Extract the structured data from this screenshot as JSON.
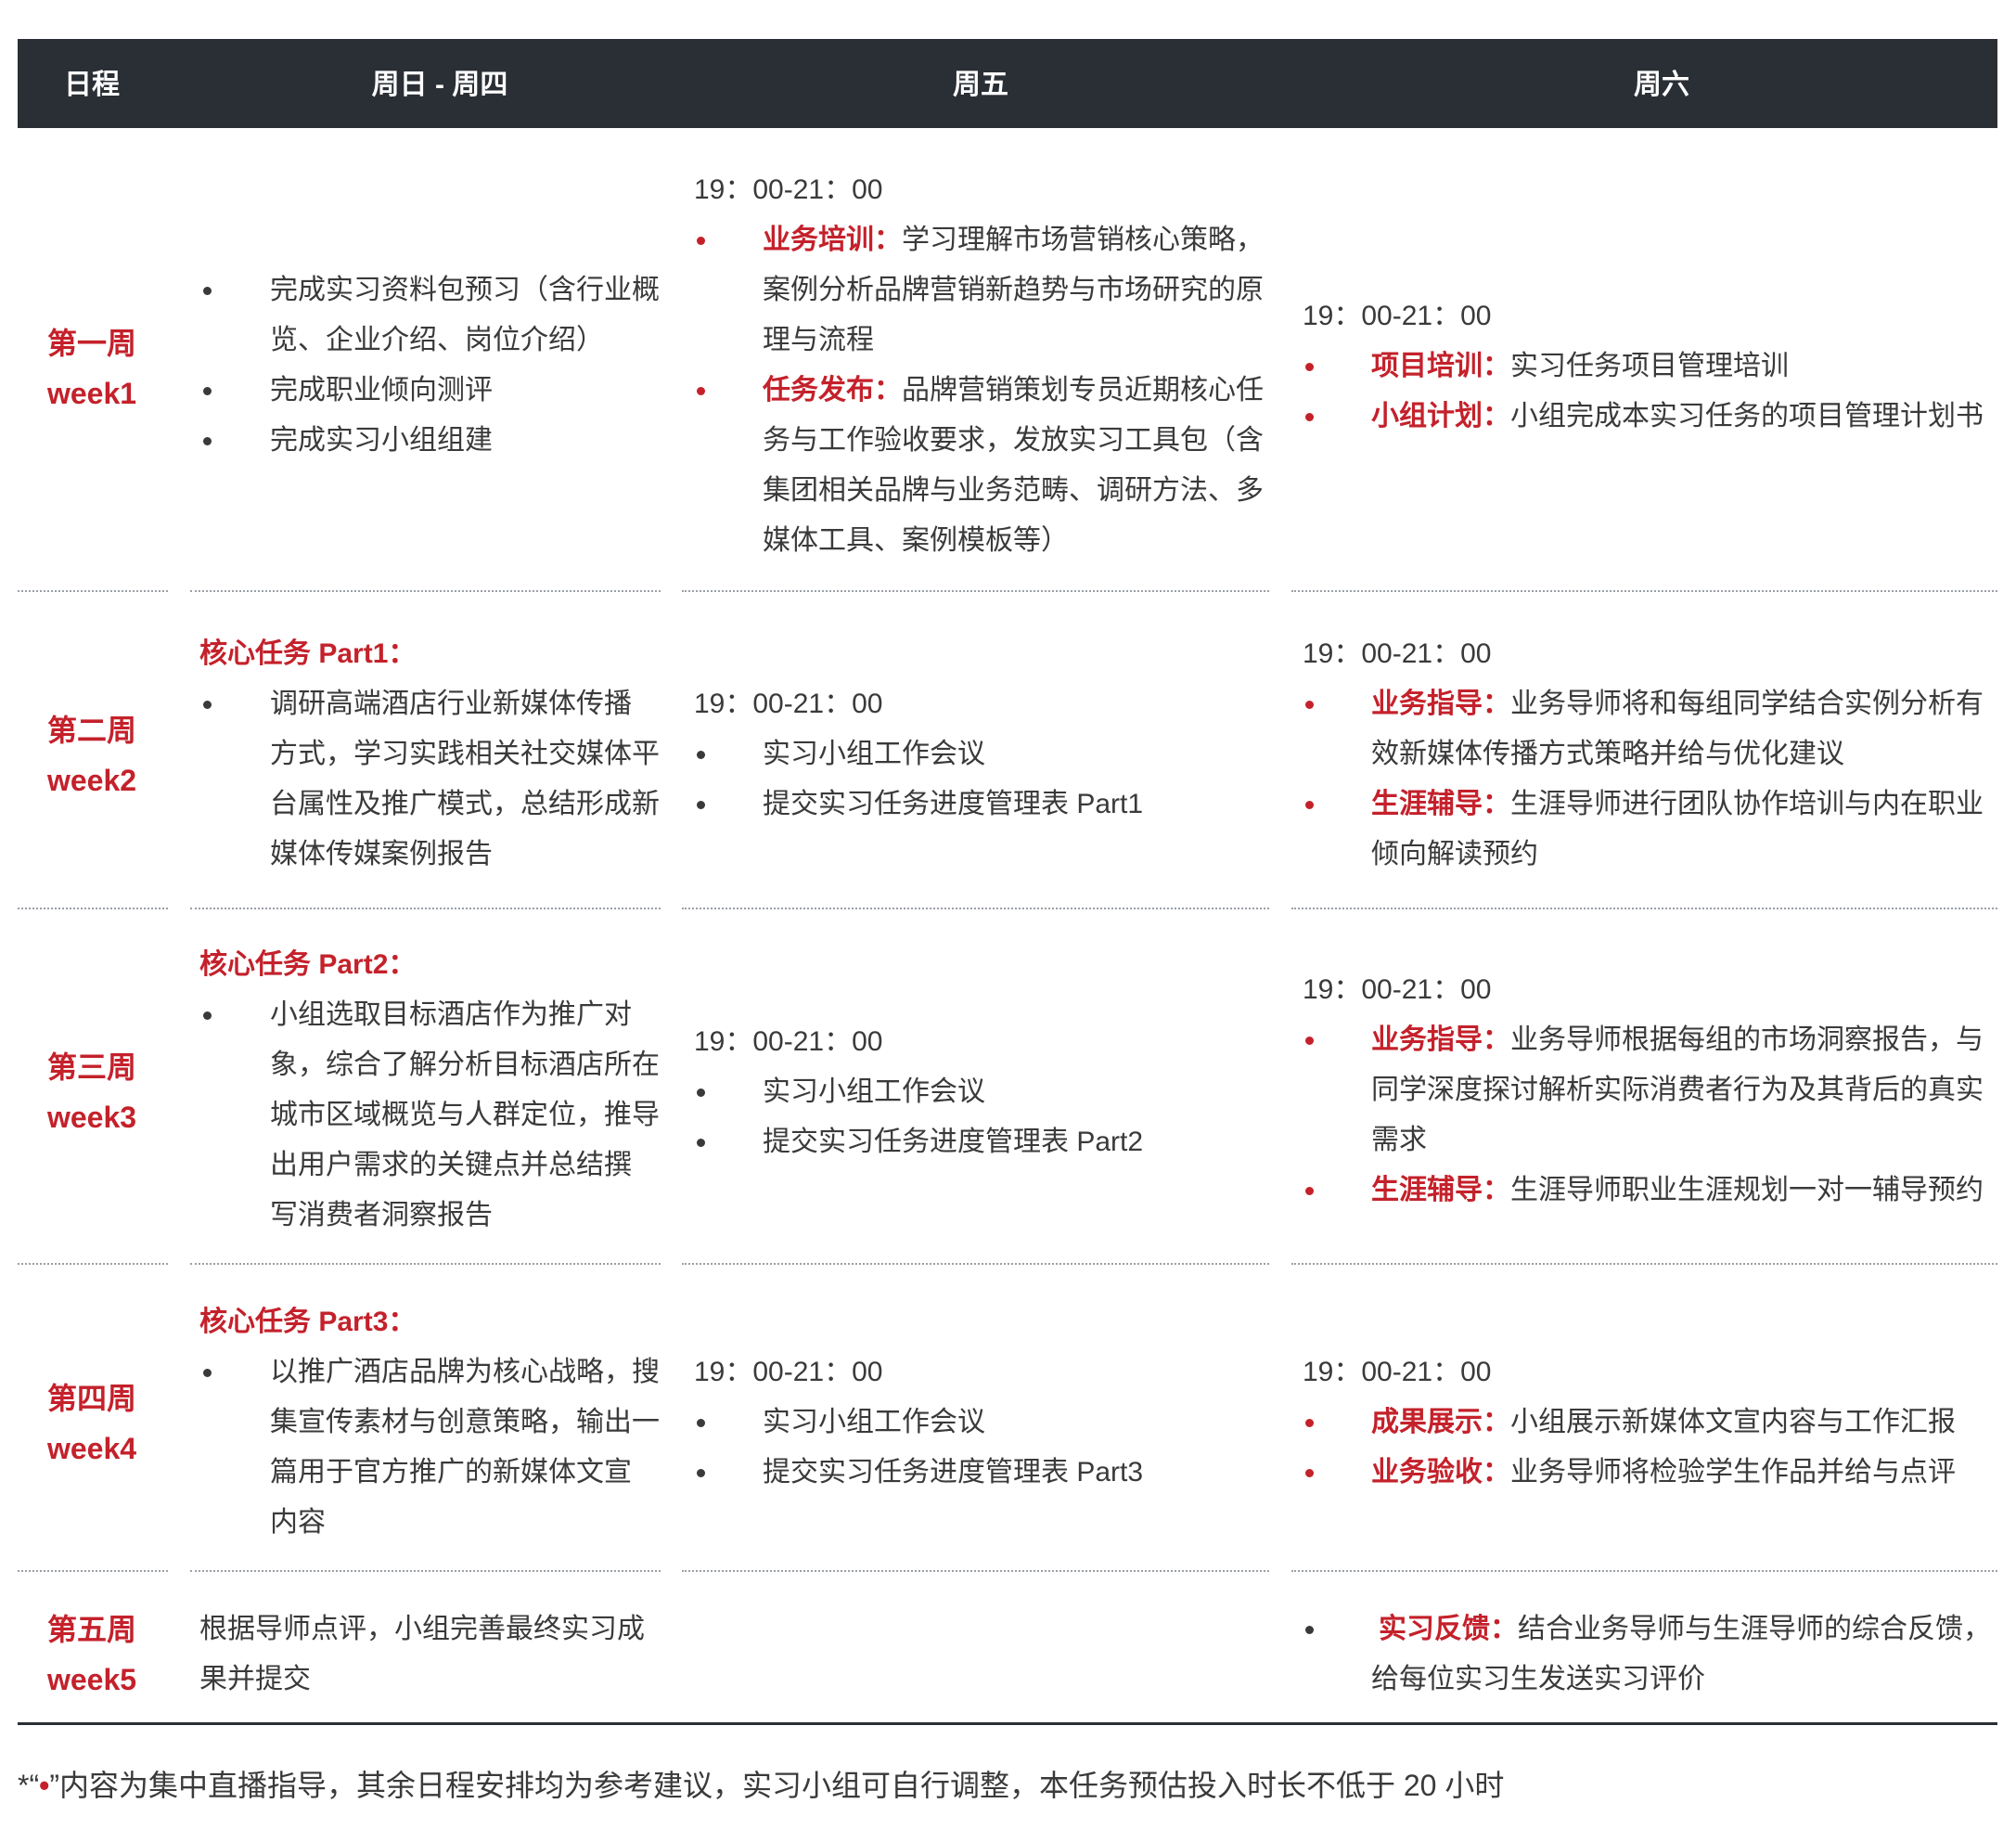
{
  "header": {
    "col_schedule": "日程",
    "col_sun_thu": "周日 - 周四",
    "col_fri": "周五",
    "col_sat": "周六"
  },
  "weeks": [
    {
      "cn": "第一周",
      "en": "week1",
      "sun_thu": {
        "items": [
          "完成实习资料包预习（含行业概",
          "览、企业介绍、岗位介绍）",
          "完成职业倾向测评",
          "完成实习小组组建"
        ]
      },
      "fri": {
        "time": "19：00-21：00",
        "items": [
          {
            "label": "业务培训：",
            "lines": [
              "学习理解市场营销核心策略，",
              "案例分析品牌营销新趋势与市场研究的原",
              "理与流程"
            ]
          },
          {
            "label": "任务发布：",
            "lines": [
              "品牌营销策划专员近期核心任",
              "务与工作验收要求，发放实习工具包（含",
              "集团相关品牌与业务范畴、调研方法、多",
              "媒体工具、案例模板等）"
            ]
          }
        ]
      },
      "sat": {
        "time": "19：00-21：00",
        "items": [
          {
            "label": "项目培训：",
            "lines": [
              "实习任务项目管理培训"
            ]
          },
          {
            "label": "小组计划：",
            "lines": [
              "小组完成本实习任务的项目管理计划书"
            ]
          }
        ]
      }
    },
    {
      "cn": "第二周",
      "en": "week2",
      "sun_thu": {
        "title": "核心任务 Part1：",
        "lines": [
          "调研高端酒店行业新媒体传播",
          "方式，学习实践相关社交媒体平",
          "台属性及推广模式，总结形成新",
          "媒体传媒案例报告"
        ]
      },
      "fri": {
        "time": "19：00-21：00",
        "items": [
          "实习小组工作会议",
          "提交实习任务进度管理表 Part1"
        ]
      },
      "sat": {
        "time": "19：00-21：00",
        "items": [
          {
            "label": "业务指导：",
            "lines": [
              "业务导师将和每组同学结合实例分析有",
              "效新媒体传播方式策略并给与优化建议"
            ]
          },
          {
            "label": "生涯辅导：",
            "lines": [
              "生涯导师进行团队协作培训与内在职业",
              "倾向解读预约"
            ]
          }
        ]
      }
    },
    {
      "cn": "第三周",
      "en": "week3",
      "sun_thu": {
        "title": "核心任务 Part2：",
        "lines": [
          "小组选取目标酒店作为推广对",
          "象，综合了解分析目标酒店所在",
          "城市区域概览与人群定位，推导",
          "出用户需求的关键点并总结撰",
          "写消费者洞察报告"
        ]
      },
      "fri": {
        "time": "19：00-21：00",
        "items": [
          "实习小组工作会议",
          "提交实习任务进度管理表 Part2"
        ]
      },
      "sat": {
        "time": "19：00-21：00",
        "items": [
          {
            "label": "业务指导：",
            "lines": [
              "业务导师根据每组的市场洞察报告，与",
              "同学深度探讨解析实际消费者行为及其背后的真实",
              "需求"
            ]
          },
          {
            "label": "生涯辅导：",
            "lines": [
              "生涯导师职业生涯规划一对一辅导预约"
            ]
          }
        ]
      }
    },
    {
      "cn": "第四周",
      "en": "week4",
      "sun_thu": {
        "title": "核心任务 Part3：",
        "lines": [
          "以推广酒店品牌为核心战略，搜",
          "集宣传素材与创意策略，输出一",
          "篇用于官方推广的新媒体文宣",
          "内容"
        ]
      },
      "fri": {
        "time": "19：00-21：00",
        "items": [
          "实习小组工作会议",
          "提交实习任务进度管理表 Part3"
        ]
      },
      "sat": {
        "time": "19：00-21：00",
        "items": [
          {
            "label": "成果展示：",
            "lines": [
              "小组展示新媒体文宣内容与工作汇报"
            ]
          },
          {
            "label": "业务验收：",
            "lines": [
              "业务导师将检验学生作品并给与点评"
            ]
          }
        ]
      }
    },
    {
      "cn": "第五周",
      "en": "week5",
      "sun_thu": {
        "lines": [
          "根据导师点评，小组完善最终实习成",
          "果并提交"
        ]
      },
      "sat": {
        "items": [
          {
            "label": "实习反馈：",
            "lines": [
              "结合业务导师与生涯导师的综合反馈，",
              "给每位实习生发送实习评价"
            ]
          }
        ]
      }
    }
  ],
  "footnote": {
    "prefix": "*“",
    "bullet": "•",
    "suffix": "”内容为集中直播指导，其余日程安排均为参考建议，实习小组可自行调整，本任务预估投入时长不低于 20 小时"
  },
  "colors": {
    "header_bg": "#2a2f36",
    "accent_red": "#c4212b",
    "body_text": "#3a3a3a"
  }
}
